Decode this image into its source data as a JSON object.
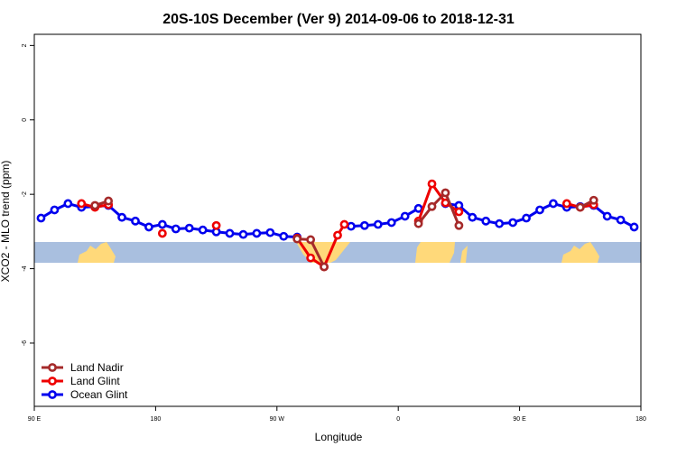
{
  "chart_data": {
    "type": "line",
    "title": "20S-10S December (Ver 9)   2014-09-06 to 2018-12-31",
    "x_label": "Longitude",
    "y_label": "XCO2 - MLO trend (ppm)",
    "xlim": [
      90,
      540
    ],
    "ylim": [
      -7.7,
      2.3
    ],
    "xticks": [
      {
        "value": 90,
        "label": "90 E"
      },
      {
        "value": 180,
        "label": "180"
      },
      {
        "value": 270,
        "label": "90 W"
      },
      {
        "value": 360,
        "label": "0"
      },
      {
        "value": 450,
        "label": "90 E"
      },
      {
        "value": 540,
        "label": "180"
      }
    ],
    "yticks": [
      2,
      0,
      -2,
      -4,
      -6
    ],
    "legend": "bottom-left",
    "series": [
      {
        "name": "Land Nadir",
        "color": "#a52a2a",
        "x": [
          135,
          145,
          155,
          285,
          295,
          305,
          315,
          375,
          385,
          395,
          405,
          415,
          495,
          505
        ],
        "values": [
          -2.3,
          -2.18,
          null,
          -3.2,
          -3.22,
          -3.95,
          null,
          -2.79,
          -2.33,
          -1.96,
          -2.84,
          null,
          -2.35,
          -2.16
        ]
      },
      {
        "name": "Land Glint",
        "color": "#ee0000",
        "x": [
          125,
          135,
          145,
          155,
          185,
          195,
          225,
          235,
          285,
          295,
          305,
          315,
          320,
          330,
          375,
          385,
          395,
          405,
          415,
          485,
          495,
          505
        ],
        "values": [
          -2.25,
          -2.35,
          -2.28,
          null,
          -3.05,
          null,
          -2.84,
          null,
          -3.18,
          -3.71,
          -3.95,
          -3.1,
          -2.81,
          null,
          -2.72,
          -1.72,
          -2.23,
          -2.47,
          null,
          -2.25,
          -2.35,
          -2.28
        ]
      },
      {
        "name": "Ocean Glint",
        "color": "#0000ee",
        "x": [
          95,
          105,
          115,
          125,
          135,
          145,
          155,
          165,
          175,
          185,
          195,
          205,
          215,
          225,
          235,
          245,
          255,
          265,
          275,
          285,
          295,
          325,
          335,
          345,
          355,
          365,
          375,
          385,
          395,
          405,
          415,
          425,
          435,
          445,
          455,
          465,
          475,
          485,
          495,
          505,
          515,
          525,
          535
        ],
        "values": [
          -2.64,
          -2.42,
          -2.25,
          -2.35,
          -2.33,
          -2.3,
          -2.62,
          -2.72,
          -2.88,
          -2.81,
          -2.93,
          -2.91,
          -2.96,
          -3.01,
          -3.05,
          -3.08,
          -3.05,
          -3.03,
          -3.13,
          -3.15,
          null,
          -2.86,
          -2.84,
          -2.81,
          -2.76,
          -2.59,
          -2.38,
          null,
          -2.25,
          -2.3,
          -2.62,
          -2.72,
          -2.79,
          -2.76,
          -2.64,
          -2.42,
          -2.25,
          -2.35,
          -2.33,
          -2.3,
          -2.59,
          -2.69,
          -2.88
        ]
      }
    ]
  }
}
